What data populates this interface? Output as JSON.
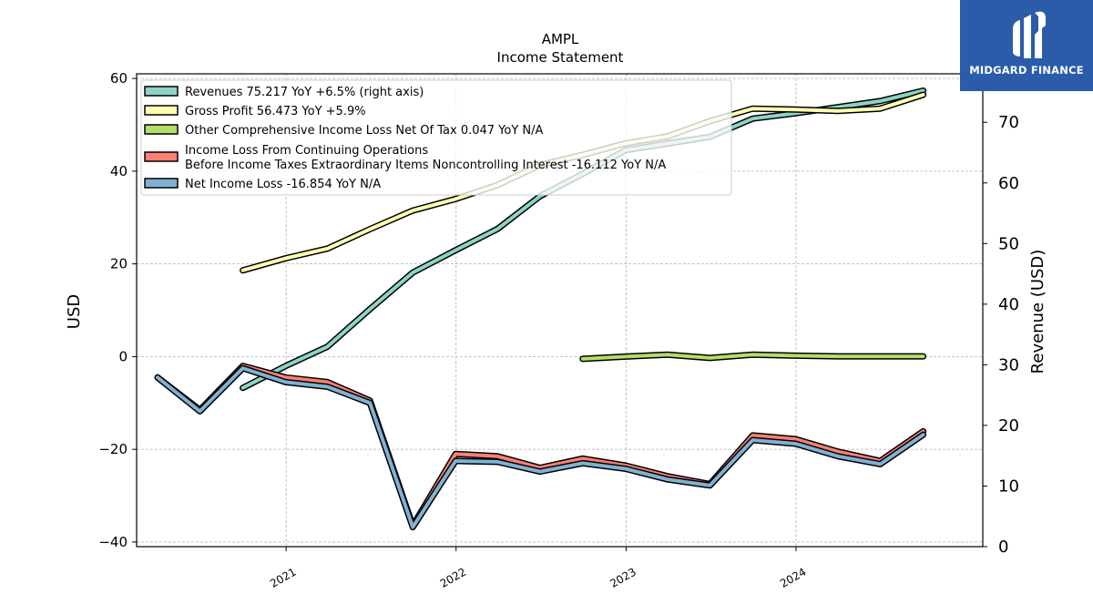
{
  "brand": {
    "name": "MIDGARD FINANCE",
    "color": "#2a5caa"
  },
  "chart_data": {
    "type": "line",
    "title": "AMPL",
    "subtitle": "Income Statement",
    "ylabel_left": "USD",
    "ylabel_right": "Revenue (USD)",
    "ylim_left": [
      -41,
      61
    ],
    "ylim_right": [
      0,
      78
    ],
    "yticks_left": [
      -40,
      -20,
      0,
      20,
      40,
      60
    ],
    "yticks_right": [
      0,
      10,
      20,
      30,
      40,
      50,
      60,
      70
    ],
    "xlim": [
      "2020-02-15",
      "2025-02-05"
    ],
    "xticks": [
      "2021",
      "2022",
      "2023",
      "2024"
    ],
    "grid": true,
    "legend_position": "top-left",
    "series": [
      {
        "name": "Revenues",
        "legend": "Revenues  75.217 YoY +6.5% (right axis)",
        "axis": "right",
        "color": "#8dd3c7",
        "points": [
          [
            "2020-09-30",
            26.2
          ],
          [
            "2020-12-31",
            29.8
          ],
          [
            "2021-03-31",
            33.0
          ],
          [
            "2021-06-30",
            39.2
          ],
          [
            "2021-09-30",
            45.2
          ],
          [
            "2021-12-31",
            48.9
          ],
          [
            "2022-03-31",
            52.4
          ],
          [
            "2022-06-30",
            57.8
          ],
          [
            "2022-09-30",
            61.5
          ],
          [
            "2022-12-31",
            65.4
          ],
          [
            "2023-03-31",
            66.5
          ],
          [
            "2023-06-30",
            67.6
          ],
          [
            "2023-09-30",
            70.6
          ],
          [
            "2023-12-31",
            71.5
          ],
          [
            "2024-03-31",
            72.5
          ],
          [
            "2024-06-30",
            73.5
          ],
          [
            "2024-09-30",
            75.217
          ]
        ]
      },
      {
        "name": "Gross Profit",
        "legend": "Gross Profit  56.473 YoY +5.9%",
        "axis": "left",
        "color": "#ffffb3",
        "points": [
          [
            "2020-09-30",
            18.6
          ],
          [
            "2020-12-31",
            21.2
          ],
          [
            "2021-03-31",
            23.3
          ],
          [
            "2021-06-30",
            27.5
          ],
          [
            "2021-09-30",
            31.5
          ],
          [
            "2021-12-31",
            34.0
          ],
          [
            "2022-03-31",
            37.0
          ],
          [
            "2022-06-30",
            41.3
          ],
          [
            "2022-09-30",
            43.5
          ],
          [
            "2022-12-31",
            46.0
          ],
          [
            "2023-03-31",
            47.5
          ],
          [
            "2023-06-30",
            50.8
          ],
          [
            "2023-09-30",
            53.5
          ],
          [
            "2023-12-31",
            53.3
          ],
          [
            "2024-03-31",
            53.0
          ],
          [
            "2024-06-30",
            53.5
          ],
          [
            "2024-09-30",
            56.473
          ]
        ]
      },
      {
        "name": "Other Comprehensive Income Loss Net Of Tax",
        "legend": "Other Comprehensive Income Loss Net Of Tax  0.047 YoY N/A",
        "axis": "left",
        "color": "#b3de69",
        "points": [
          [
            "2022-09-30",
            -0.5
          ],
          [
            "2022-12-31",
            0.0
          ],
          [
            "2023-03-31",
            0.4
          ],
          [
            "2023-06-30",
            -0.3
          ],
          [
            "2023-09-30",
            0.4
          ],
          [
            "2023-12-31",
            0.2
          ],
          [
            "2024-03-31",
            0.05
          ],
          [
            "2024-06-30",
            0.05
          ],
          [
            "2024-09-30",
            0.047
          ]
        ]
      },
      {
        "name": "Income Loss From Continuing Operations Before Income Taxes Extraordinary Items Noncontrolling Interest",
        "legend_line1": "Income Loss From Continuing Operations",
        "legend_line2": "Before Income Taxes Extraordinary Items Noncontrolling Interest  -16.112 YoY N/A",
        "axis": "left",
        "color": "#fb8072",
        "points": [
          [
            "2020-03-31",
            -4.5
          ],
          [
            "2020-06-30",
            -11.5
          ],
          [
            "2020-09-30",
            -2.0
          ],
          [
            "2020-12-31",
            -4.5
          ],
          [
            "2021-03-31",
            -5.5
          ],
          [
            "2021-06-30",
            -9.5
          ],
          [
            "2021-09-30",
            -36.5
          ],
          [
            "2021-12-31",
            -21.0
          ],
          [
            "2022-03-31",
            -21.5
          ],
          [
            "2022-06-30",
            -24.0
          ],
          [
            "2022-09-30",
            -22.0
          ],
          [
            "2022-12-31",
            -23.5
          ],
          [
            "2023-03-31",
            -25.8
          ],
          [
            "2023-06-30",
            -27.5
          ],
          [
            "2023-09-30",
            -17.0
          ],
          [
            "2023-12-31",
            -17.8
          ],
          [
            "2024-03-31",
            -20.5
          ],
          [
            "2024-06-30",
            -22.5
          ],
          [
            "2024-09-30",
            -16.112
          ]
        ]
      },
      {
        "name": "Net Income Loss",
        "legend": "Net Income Loss  -16.854 YoY N/A",
        "axis": "left",
        "color": "#80b1d3",
        "points": [
          [
            "2020-03-31",
            -4.5
          ],
          [
            "2020-06-30",
            -11.8
          ],
          [
            "2020-09-30",
            -2.5
          ],
          [
            "2020-12-31",
            -5.5
          ],
          [
            "2021-03-31",
            -6.5
          ],
          [
            "2021-06-30",
            -10.0
          ],
          [
            "2021-09-30",
            -36.8
          ],
          [
            "2021-12-31",
            -22.5
          ],
          [
            "2022-03-31",
            -22.7
          ],
          [
            "2022-06-30",
            -24.8
          ],
          [
            "2022-09-30",
            -23.0
          ],
          [
            "2022-12-31",
            -24.2
          ],
          [
            "2023-03-31",
            -26.5
          ],
          [
            "2023-06-30",
            -27.8
          ],
          [
            "2023-09-30",
            -18.0
          ],
          [
            "2023-12-31",
            -18.8
          ],
          [
            "2024-03-31",
            -21.5
          ],
          [
            "2024-06-30",
            -23.2
          ],
          [
            "2024-09-30",
            -16.854
          ]
        ]
      }
    ]
  }
}
